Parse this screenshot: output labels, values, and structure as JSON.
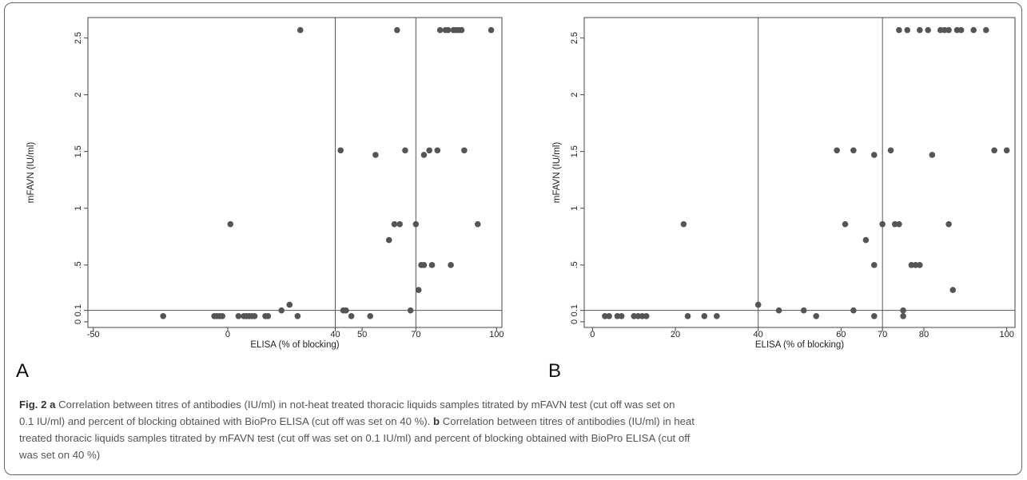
{
  "chart_data": [
    {
      "panel": "A",
      "type": "scatter",
      "xlabel": "ELISA (% of blocking)",
      "ylabel": "mFAVN (IU/ml)",
      "xticks": [
        -50,
        0,
        40,
        50,
        70,
        100
      ],
      "xtick_labels": [
        "-50",
        "0",
        "40",
        "50",
        "70",
        "100"
      ],
      "yticks": [
        0,
        0.1,
        0.5,
        1,
        1.5,
        2,
        2.5
      ],
      "ytick_labels": [
        "0",
        "0.1",
        ".5",
        "1",
        "1.5",
        "2",
        "2.5"
      ],
      "xlim": [
        -52,
        102
      ],
      "ylim": [
        -0.05,
        2.68
      ],
      "reference_lines": {
        "x": [
          40,
          70
        ],
        "y": [
          0.1
        ]
      },
      "points": [
        [
          -24,
          0.05
        ],
        [
          -5,
          0.05
        ],
        [
          -4,
          0.05
        ],
        [
          -3,
          0.05
        ],
        [
          -2,
          0.05
        ],
        [
          1,
          0.86
        ],
        [
          4,
          0.05
        ],
        [
          6,
          0.05
        ],
        [
          7,
          0.05
        ],
        [
          8,
          0.05
        ],
        [
          9,
          0.05
        ],
        [
          10,
          0.05
        ],
        [
          14,
          0.05
        ],
        [
          15,
          0.05
        ],
        [
          20,
          0.1
        ],
        [
          23,
          0.15
        ],
        [
          26,
          0.05
        ],
        [
          27,
          2.57
        ],
        [
          42,
          1.51
        ],
        [
          43,
          0.1
        ],
        [
          44,
          0.1
        ],
        [
          46,
          0.05
        ],
        [
          53,
          0.05
        ],
        [
          55,
          1.47
        ],
        [
          60,
          0.72
        ],
        [
          62,
          0.86
        ],
        [
          63,
          2.57
        ],
        [
          64,
          0.86
        ],
        [
          66,
          1.51
        ],
        [
          68,
          0.1
        ],
        [
          70,
          0.86
        ],
        [
          71,
          0.28
        ],
        [
          72,
          0.5
        ],
        [
          73,
          1.47
        ],
        [
          73,
          0.5
        ],
        [
          75,
          1.51
        ],
        [
          76,
          0.5
        ],
        [
          78,
          1.51
        ],
        [
          79,
          2.57
        ],
        [
          81,
          2.57
        ],
        [
          82,
          2.57
        ],
        [
          83,
          0.5
        ],
        [
          84,
          2.57
        ],
        [
          85,
          2.57
        ],
        [
          86,
          2.57
        ],
        [
          87,
          2.57
        ],
        [
          88,
          1.51
        ],
        [
          93,
          0.86
        ],
        [
          98,
          2.57
        ]
      ]
    },
    {
      "panel": "B",
      "type": "scatter",
      "xlabel": "ELISA (% of blocking)",
      "ylabel": "mFAVN (IU/ml)",
      "xticks": [
        0,
        20,
        40,
        60,
        70,
        80,
        100
      ],
      "xtick_labels": [
        "0",
        "20",
        "40",
        "60",
        "70",
        "80",
        "100"
      ],
      "yticks": [
        0,
        0.1,
        0.5,
        1,
        1.5,
        2,
        2.5
      ],
      "ytick_labels": [
        "0",
        "0.1",
        ".5",
        "1",
        "1.5",
        "2",
        "2.5"
      ],
      "xlim": [
        -2,
        102
      ],
      "ylim": [
        -0.05,
        2.68
      ],
      "reference_lines": {
        "x": [
          40,
          70
        ],
        "y": [
          0.1
        ]
      },
      "points": [
        [
          3,
          0.05
        ],
        [
          4,
          0.05
        ],
        [
          6,
          0.05
        ],
        [
          7,
          0.05
        ],
        [
          10,
          0.05
        ],
        [
          11,
          0.05
        ],
        [
          12,
          0.05
        ],
        [
          13,
          0.05
        ],
        [
          22,
          0.86
        ],
        [
          23,
          0.05
        ],
        [
          27,
          0.05
        ],
        [
          30,
          0.05
        ],
        [
          40,
          0.15
        ],
        [
          45,
          0.1
        ],
        [
          51,
          0.1
        ],
        [
          54,
          0.05
        ],
        [
          59,
          1.51
        ],
        [
          61,
          0.86
        ],
        [
          63,
          1.51
        ],
        [
          63,
          0.1
        ],
        [
          66,
          0.72
        ],
        [
          68,
          0.5
        ],
        [
          68,
          1.47
        ],
        [
          68,
          0.05
        ],
        [
          70,
          0.86
        ],
        [
          72,
          1.51
        ],
        [
          73,
          0.86
        ],
        [
          74,
          0.86
        ],
        [
          74,
          2.57
        ],
        [
          75,
          0.05
        ],
        [
          75,
          0.1
        ],
        [
          76,
          2.57
        ],
        [
          77,
          0.5
        ],
        [
          78,
          0.5
        ],
        [
          79,
          0.5
        ],
        [
          79,
          2.57
        ],
        [
          81,
          2.57
        ],
        [
          82,
          1.47
        ],
        [
          84,
          2.57
        ],
        [
          85,
          2.57
        ],
        [
          86,
          2.57
        ],
        [
          86,
          0.86
        ],
        [
          87,
          0.28
        ],
        [
          88,
          2.57
        ],
        [
          89,
          2.57
        ],
        [
          92,
          2.57
        ],
        [
          95,
          2.57
        ],
        [
          97,
          1.51
        ],
        [
          100,
          1.51
        ]
      ]
    }
  ],
  "caption": {
    "fig_label": "Fig. 2",
    "a_letter": "a",
    "a_text": " Correlation between titres of antibodies (IU/ml) in not-heat treated thoracic liquids samples titrated by mFAVN test (cut off was set on",
    "line2": "0.1 IU/ml) and percent of blocking obtained with BioPro ELISA (cut off was set on 40 %). ",
    "b_letter": "b",
    "b_text": " Correlation between titres of antibodies (IU/ml) in heat",
    "line3": "treated thoracic liquids samples titrated by mFAVN test (cut off was set on 0.1 IU/ml) and percent of blocking obtained with BioPro ELISA (cut off",
    "line4": "was set on 40 %)"
  }
}
